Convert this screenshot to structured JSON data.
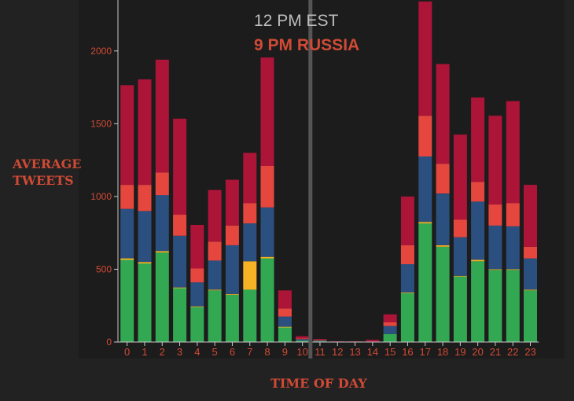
{
  "annotation": {
    "est_time": "12 PM EST",
    "russia_time": "9 PM RUSSIA"
  },
  "axis_titles": {
    "y_line1": "AVERAGE",
    "y_line2": "TWEETS",
    "x": "TIME OF DAY"
  },
  "colors": {
    "green": "#33a853",
    "yellow": "#f5b325",
    "blue": "#2b4f7e",
    "red": "#e5473f",
    "crimson": "#ac1438",
    "axis": "#c9c9c9",
    "tick_label": "#d04a35",
    "marker": "#555555"
  },
  "chart_data": {
    "type": "bar",
    "stacked": true,
    "categories": [
      "0",
      "1",
      "2",
      "3",
      "4",
      "5",
      "6",
      "7",
      "8",
      "9",
      "10",
      "11",
      "12",
      "13",
      "14",
      "15",
      "16",
      "17",
      "18",
      "19",
      "20",
      "21",
      "22",
      "23"
    ],
    "series": [
      {
        "color": "green",
        "values": [
          565,
          540,
          615,
          370,
          240,
          355,
          325,
          360,
          575,
          100,
          10,
          5,
          0,
          0,
          0,
          55,
          335,
          815,
          655,
          450,
          555,
          495,
          495,
          355
        ]
      },
      {
        "color": "yellow",
        "values": [
          10,
          10,
          10,
          5,
          5,
          5,
          5,
          195,
          10,
          5,
          0,
          0,
          0,
          0,
          0,
          0,
          5,
          10,
          10,
          5,
          10,
          5,
          5,
          5
        ]
      },
      {
        "color": "blue",
        "values": [
          340,
          350,
          385,
          355,
          165,
          200,
          335,
          260,
          340,
          70,
          10,
          5,
          0,
          0,
          0,
          55,
          195,
          450,
          355,
          265,
          400,
          300,
          295,
          215
        ]
      },
      {
        "color": "red",
        "values": [
          165,
          180,
          155,
          145,
          95,
          130,
          135,
          140,
          285,
          55,
          5,
          5,
          0,
          0,
          0,
          25,
          130,
          280,
          205,
          120,
          135,
          145,
          160,
          80
        ]
      },
      {
        "color": "crimson",
        "values": [
          685,
          725,
          775,
          660,
          300,
          355,
          315,
          345,
          745,
          125,
          15,
          5,
          5,
          5,
          15,
          55,
          335,
          785,
          685,
          585,
          580,
          610,
          700,
          425
        ]
      }
    ],
    "y_ticks": [
      0,
      500,
      1000,
      1500,
      2000
    ],
    "ylim": [
      0,
      2350
    ],
    "marker_hour": 11
  }
}
